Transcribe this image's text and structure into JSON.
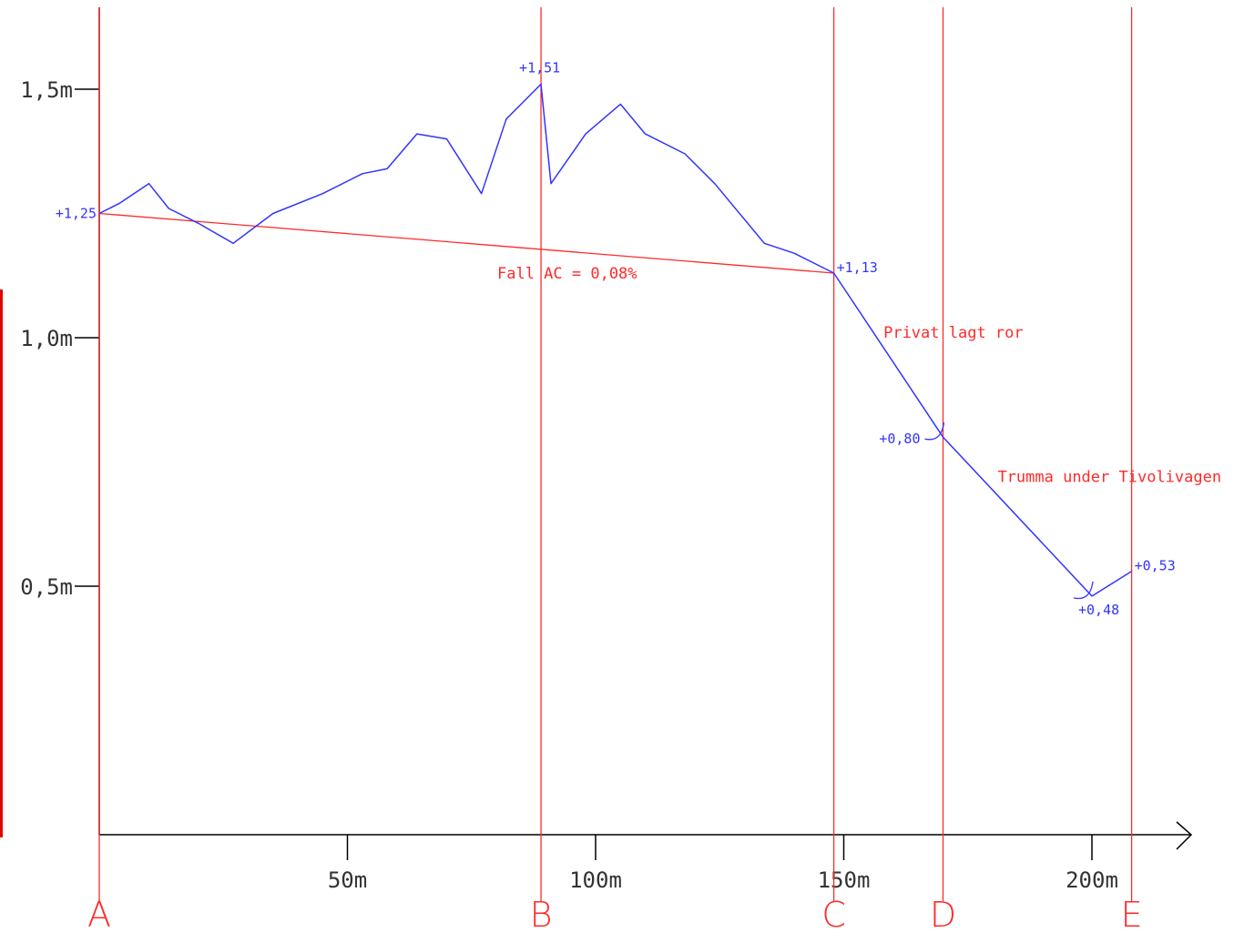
{
  "chart_data": {
    "type": "line",
    "title": "",
    "xlabel": "",
    "ylabel": "",
    "xlim": [
      0,
      208
    ],
    "ylim": [
      0,
      1.67
    ],
    "x_ticks": [
      {
        "value": 50,
        "label": "50m"
      },
      {
        "value": 100,
        "label": "100m"
      },
      {
        "value": 150,
        "label": "150m"
      },
      {
        "value": 200,
        "label": "200m"
      }
    ],
    "y_ticks": [
      {
        "value": 0.5,
        "label": "0,5m"
      },
      {
        "value": 1.0,
        "label": "1,0m"
      },
      {
        "value": 1.5,
        "label": "1,5m"
      }
    ],
    "colors": {
      "profile": "#3333ff",
      "reference": "#ff2a2a",
      "axis": "#000000"
    },
    "series": [
      {
        "values_xy": [
          [
            0,
            1.25
          ],
          [
            4,
            1.27
          ],
          [
            10,
            1.31
          ],
          [
            14,
            1.26
          ],
          [
            20,
            1.23
          ],
          [
            27,
            1.19
          ],
          [
            35,
            1.25
          ],
          [
            45,
            1.29
          ],
          [
            53,
            1.33
          ],
          [
            58,
            1.34
          ],
          [
            64,
            1.41
          ],
          [
            70,
            1.4
          ],
          [
            77,
            1.29
          ],
          [
            82,
            1.44
          ],
          [
            89,
            1.51
          ],
          [
            91,
            1.31
          ],
          [
            98,
            1.41
          ],
          [
            105,
            1.47
          ],
          [
            110,
            1.41
          ],
          [
            118,
            1.37
          ],
          [
            124,
            1.31
          ],
          [
            134,
            1.19
          ],
          [
            140,
            1.17
          ],
          [
            148,
            1.13
          ],
          [
            170,
            0.8
          ],
          [
            200,
            0.48
          ],
          [
            208,
            0.53
          ]
        ]
      }
    ],
    "reference_line": {
      "from": [
        0,
        1.25
      ],
      "to": [
        148,
        1.13
      ],
      "label": "Fall AC = 0,08%"
    },
    "stations": [
      {
        "name": "A",
        "x": 0
      },
      {
        "name": "B",
        "x": 89
      },
      {
        "name": "C",
        "x": 148
      },
      {
        "name": "D",
        "x": 170
      },
      {
        "name": "E",
        "x": 208
      }
    ],
    "point_labels": [
      {
        "x": 0,
        "y": 1.25,
        "text": "+1,25",
        "side": "left"
      },
      {
        "x": 89,
        "y": 1.51,
        "text": "+1,51",
        "side": "above"
      },
      {
        "x": 148,
        "y": 1.13,
        "text": "+1,13",
        "side": "right"
      },
      {
        "x": 170,
        "y": 0.8,
        "text": "+0,80",
        "side": "left"
      },
      {
        "x": 200,
        "y": 0.48,
        "text": "+0,48",
        "side": "below"
      },
      {
        "x": 208,
        "y": 0.53,
        "text": "+0,53",
        "side": "right"
      }
    ],
    "annotations": [
      {
        "text": "Privat lagt ror",
        "x": 158,
        "y": 1.0
      },
      {
        "text": "Trumma under Tivolivagen",
        "x": 181,
        "y": 0.71
      }
    ],
    "pipe_markers_x": [
      170,
      200
    ]
  }
}
